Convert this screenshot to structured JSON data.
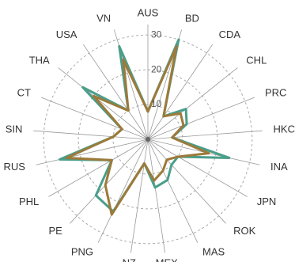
{
  "chart_data": {
    "type": "radar",
    "categories": [
      "AUS",
      "BD",
      "CDA",
      "CHL",
      "PRC",
      "HKC",
      "INA",
      "JPN",
      "ROK",
      "MAS",
      "MEX",
      "NZ",
      "PNG",
      "PE",
      "PHL",
      "RUS",
      "SIN",
      "CT",
      "THA",
      "USA",
      "VN"
    ],
    "series": [
      {
        "color": "#4a9e8a",
        "values": [
          8,
          30,
          8,
          14,
          12,
          7,
          24,
          10,
          10,
          13,
          14,
          7,
          23,
          22,
          12,
          26,
          10,
          8,
          24,
          10,
          28
        ]
      },
      {
        "color": "#9c7a3a",
        "values": [
          8,
          28,
          8,
          12,
          11,
          7,
          18,
          10,
          8,
          10,
          12,
          7,
          24,
          18,
          12,
          24,
          10,
          8,
          20,
          10,
          24
        ]
      }
    ],
    "rlim": [
      0,
      33
    ],
    "rticks": [
      10,
      20,
      30
    ],
    "grid": true
  }
}
